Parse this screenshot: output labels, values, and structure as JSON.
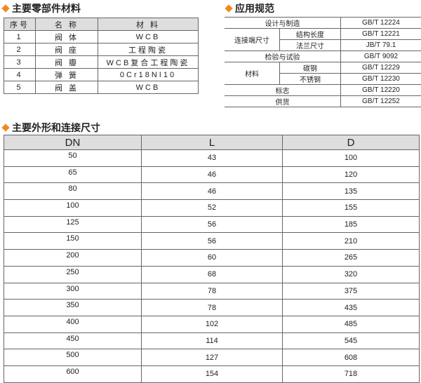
{
  "parts": {
    "title": "主要零部件材料",
    "headers": [
      "序号",
      "名 称",
      "材 料"
    ],
    "rows": [
      [
        "1",
        "阀 体",
        "WCB"
      ],
      [
        "2",
        "阀 座",
        "工程陶瓷"
      ],
      [
        "3",
        "阀 瓣",
        "WCB复合工程陶瓷"
      ],
      [
        "4",
        "弹 簧",
        "0Cr18NI10"
      ],
      [
        "5",
        "阀 盖",
        "WCB"
      ]
    ]
  },
  "standards": {
    "title": "应用规范",
    "design": "设计与制造",
    "design_std": "GB/T 12224",
    "conn": "连接端尺寸",
    "conn_len": "结构长度",
    "conn_len_std": "GB/T 12221",
    "conn_flange": "法兰尺寸",
    "conn_flange_std": "JB/T 79.1",
    "test": "检验与试验",
    "test_std": "GB/T 9092",
    "mat": "材料",
    "mat_carbon": "碳钢",
    "mat_carbon_std": "GB/T 12229",
    "mat_ss": "不锈钢",
    "mat_ss_std": "GB/T 12230",
    "mark": "标志",
    "mark_std": "GB/T 12220",
    "supply": "供货",
    "supply_std": "GB/T 12252"
  },
  "dims": {
    "title": "主要外形和连接尺寸",
    "headers": [
      "DN",
      "L",
      "D"
    ],
    "rows": [
      [
        "50",
        "43",
        "100"
      ],
      [
        "65",
        "46",
        "120"
      ],
      [
        "80",
        "46",
        "135"
      ],
      [
        "100",
        "52",
        "155"
      ],
      [
        "125",
        "56",
        "185"
      ],
      [
        "150",
        "56",
        "210"
      ],
      [
        "200",
        "60",
        "265"
      ],
      [
        "250",
        "68",
        "320"
      ],
      [
        "300",
        "78",
        "375"
      ],
      [
        "350",
        "78",
        "435"
      ],
      [
        "400",
        "102",
        "485"
      ],
      [
        "450",
        "114",
        "545"
      ],
      [
        "500",
        "127",
        "608"
      ],
      [
        "600",
        "154",
        "718"
      ]
    ]
  },
  "colors": {
    "accent": "#f08a1c",
    "header_bg": "#dedede"
  }
}
